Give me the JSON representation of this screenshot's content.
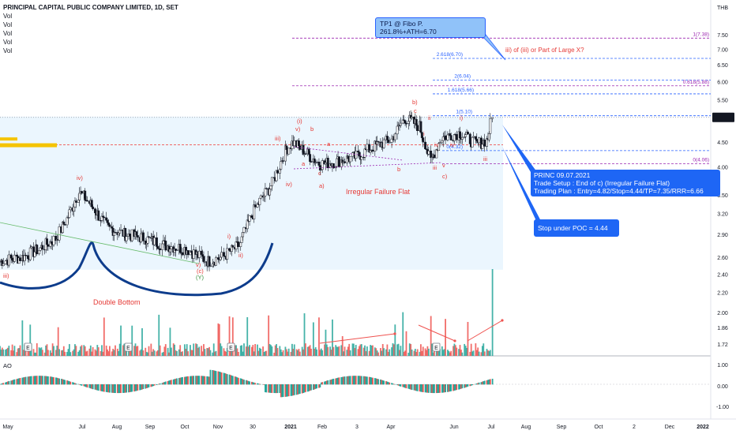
{
  "header": {
    "title": "PRINCIPAL CAPITAL PUBLIC COMPANY LIMITED, 1D, SET",
    "vol_labels": [
      "Vol",
      "Vol",
      "Vol",
      "Vol",
      "Vol"
    ],
    "currency": "THB"
  },
  "price_axis": {
    "ticks": [
      "7.50",
      "7.00",
      "6.50",
      "6.00",
      "5.50",
      "5.06",
      "4.50",
      "4.00",
      "3.50",
      "3.20",
      "2.90",
      "2.60",
      "2.40",
      "2.20",
      "2.00",
      "1.86",
      "1.72"
    ],
    "last_price": "5.06"
  },
  "ao_axis": {
    "ticks": [
      "1.00",
      "0.00",
      "-1.00"
    ]
  },
  "ao_label": "AO",
  "time_axis": {
    "ticks": [
      "May",
      "Jul",
      "Aug",
      "Sep",
      "Oct",
      "Nov",
      "30",
      "2021",
      "Feb",
      "3",
      "Apr",
      "Jun",
      "Jul",
      "Aug",
      "Sep",
      "Oct",
      "2",
      "Dec",
      "2022"
    ]
  },
  "fib_levels": [
    {
      "label": "1(7.38)",
      "color": "#9c27b0"
    },
    {
      "label": "2.618(6.70)",
      "color": "#2962ff"
    },
    {
      "label": "2(6.04)",
      "color": "#2962ff"
    },
    {
      "label": "0.618(5.88)",
      "color": "#9c27b0"
    },
    {
      "label": "1.618(5.66)",
      "color": "#2962ff"
    },
    {
      "label": "1(5.10)",
      "color": "#2962ff"
    },
    {
      "label": "0(4.32)",
      "color": "#2962ff"
    },
    {
      "label": "0(4.06)",
      "color": "#9c27b0"
    }
  ],
  "wave_labels": [
    "iii)",
    "iv)",
    "v)",
    "(c)",
    "(Y)",
    "i)",
    "ii)",
    "iii)",
    "iv)",
    "(i)",
    "v)",
    "b",
    "a",
    "c",
    "a)",
    "a",
    "b",
    "b)",
    "c",
    "ii",
    "i",
    "iv",
    "iii",
    "v",
    "c)",
    "i)",
    "iii",
    "iv"
  ],
  "annotations": {
    "tp_bubble": "TP1 @ Fibo P. 261.8%+ATH=6.70",
    "wave_note": "iii) of (iii) or Part of Large X?",
    "pattern": "Irregular Failure Flat",
    "double_bottom": "Double Bottom",
    "setup_lines": [
      "PRINC 09.07.2021",
      "Trade Setup : End of c) (Irregular Failure Flat)",
      "Trading Plan : Entry=4.82/Stop=4.44/TP=7.35/RRR=6.66"
    ],
    "stop_bubble": "Stop under POC = 4.44",
    "earnings_marker": "E"
  },
  "colors": {
    "up": "#26a69a",
    "down": "#ef5350",
    "accent": "#2962ff",
    "fib_purple": "#9c27b0",
    "wave_red": "#e53935",
    "wave_green": "#388e3c",
    "bowl": "#0d3c8c",
    "zone": "#e3f2fd",
    "poc": "#f5c400"
  },
  "chart_data": {
    "type": "candlestick",
    "title": "PRINCIPAL CAPITAL PUBLIC COMPANY LIMITED, 1D, SET",
    "x_range": [
      "2020-05",
      "2022-01"
    ],
    "ylim": [
      1.65,
      7.8
    ],
    "y_scale": "log",
    "last_close": 5.06,
    "close_path": [
      {
        "x": "2020-04-25",
        "y": 2.55
      },
      {
        "x": "2020-05-15",
        "y": 2.6
      },
      {
        "x": "2020-05-30",
        "y": 2.7
      },
      {
        "x": "2020-06-15",
        "y": 2.85
      },
      {
        "x": "2020-06-25",
        "y": 3.15
      },
      {
        "x": "2020-07-05",
        "y": 3.55
      },
      {
        "x": "2020-07-15",
        "y": 3.35
      },
      {
        "x": "2020-07-30",
        "y": 3.0
      },
      {
        "x": "2020-08-15",
        "y": 2.9
      },
      {
        "x": "2020-09-01",
        "y": 2.85
      },
      {
        "x": "2020-09-20",
        "y": 2.75
      },
      {
        "x": "2020-10-10",
        "y": 2.7
      },
      {
        "x": "2020-10-28",
        "y": 2.55
      },
      {
        "x": "2020-11-10",
        "y": 2.6
      },
      {
        "x": "2020-11-25",
        "y": 2.75
      },
      {
        "x": "2020-12-10",
        "y": 3.3
      },
      {
        "x": "2020-12-25",
        "y": 3.7
      },
      {
        "x": "2021-01-05",
        "y": 4.3
      },
      {
        "x": "2021-01-12",
        "y": 4.5
      },
      {
        "x": "2021-01-25",
        "y": 4.25
      },
      {
        "x": "2021-02-05",
        "y": 4.05
      },
      {
        "x": "2021-02-20",
        "y": 4.1
      },
      {
        "x": "2021-03-10",
        "y": 4.2
      },
      {
        "x": "2021-03-25",
        "y": 4.4
      },
      {
        "x": "2021-04-10",
        "y": 4.55
      },
      {
        "x": "2021-04-22",
        "y": 5.05
      },
      {
        "x": "2021-05-05",
        "y": 4.85
      },
      {
        "x": "2021-05-15",
        "y": 4.1
      },
      {
        "x": "2021-05-25",
        "y": 4.6
      },
      {
        "x": "2021-06-10",
        "y": 4.7
      },
      {
        "x": "2021-06-25",
        "y": 4.45
      },
      {
        "x": "2021-07-05",
        "y": 4.55
      },
      {
        "x": "2021-07-09",
        "y": 5.06
      }
    ],
    "ao_range": [
      -1.0,
      1.0
    ]
  }
}
